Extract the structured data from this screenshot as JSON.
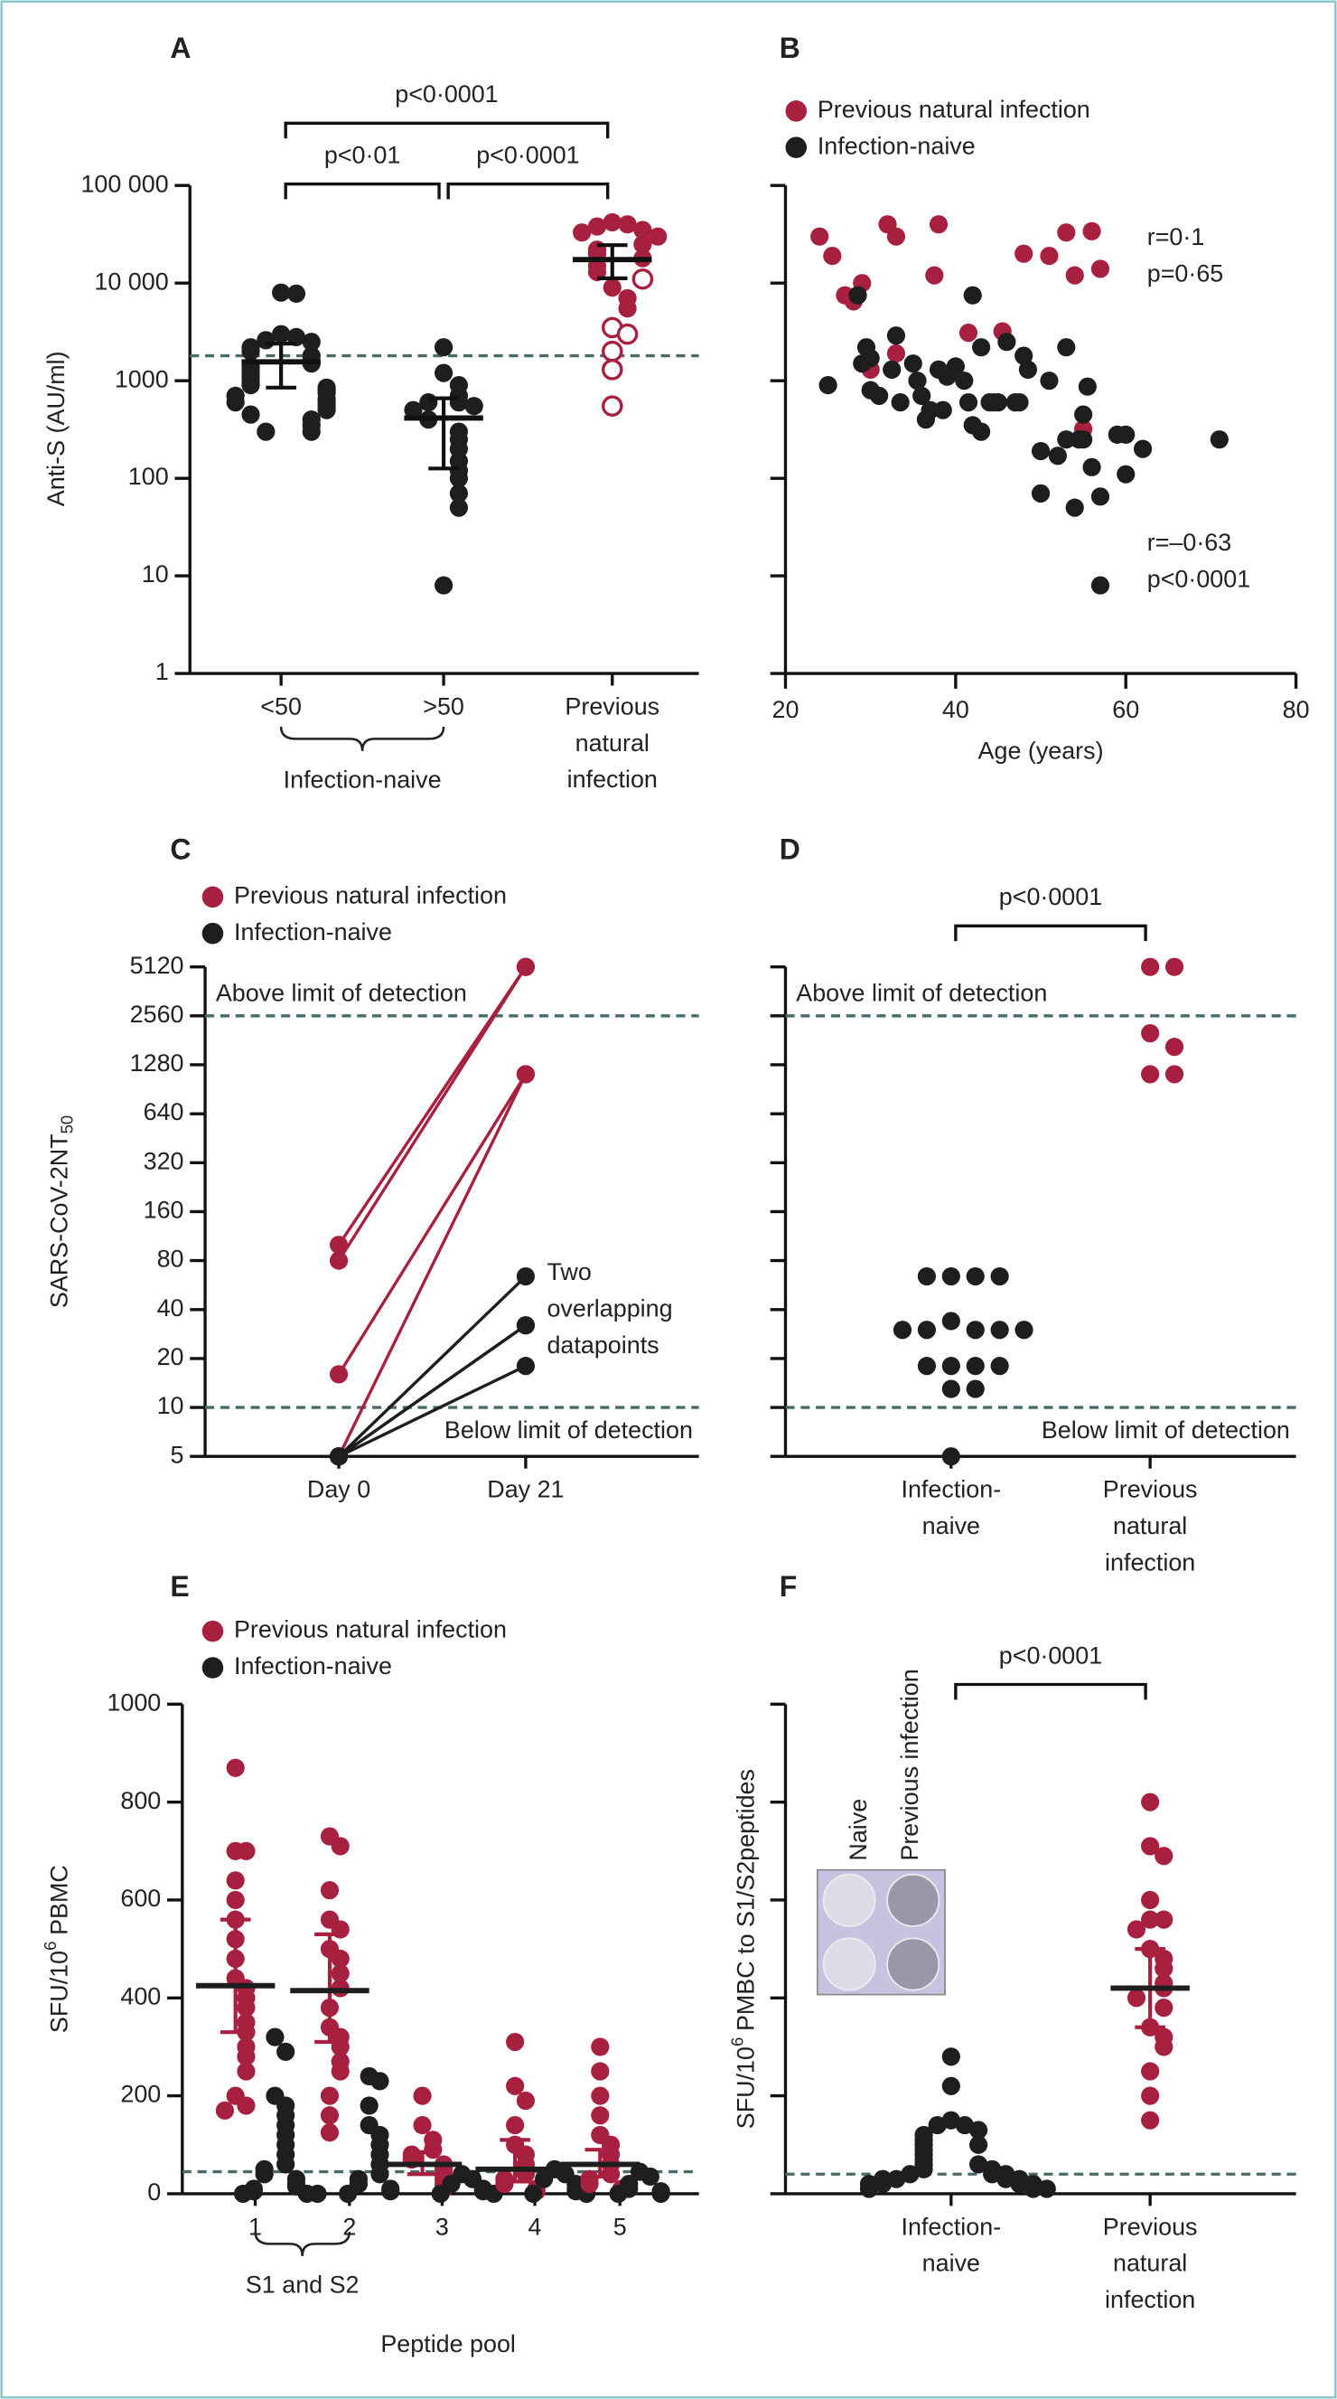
{
  "chart_data": [
    {
      "panel": "A",
      "type": "strip",
      "ylabel": "Anti-S (AU/ml)",
      "yscale": "log",
      "ylim": [
        1,
        100000
      ],
      "yticks": [
        1,
        10,
        100,
        1000,
        {
          "value": 10000,
          "label": "10 000"
        },
        {
          "value": 100000,
          "label": "100 000"
        }
      ],
      "categories": [
        "<50",
        ">50",
        "Previous natural infection"
      ],
      "brace": {
        "from": 0,
        "to": 1,
        "label": "Infection-naive"
      },
      "brackets": [
        {
          "from": 0,
          "to": 1,
          "label": "p<0·01"
        },
        {
          "from": 1,
          "to": 2,
          "label": "p<0·0001"
        },
        {
          "from": 0,
          "to": 2,
          "label": "p<0·0001"
        }
      ],
      "thresholds": [
        {
          "value": 1800
        }
      ],
      "stat_color": "#111111",
      "whisker_color": "#111111",
      "series": [
        {
          "color": "#1e1e1e",
          "values": [
            [
              8000,
              7800,
              3000,
              2800,
              2600,
              2500,
              2200,
              2000,
              1800,
              1600,
              1500,
              1400,
              1300,
              1200,
              1100,
              1000,
              950,
              900,
              850,
              800,
              750,
              700,
              650,
              600,
              600,
              550,
              500,
              450,
              400,
              350,
              300,
              300
            ],
            [
              2200,
              1200,
              900,
              700,
              600,
              600,
              550,
              500,
              400,
              300,
              250,
              200,
              150,
              120,
              100,
              70,
              50,
              8
            ],
            null
          ],
          "median": [
            1560,
            415,
            null
          ],
          "iqr": [
            [
              850,
              2400
            ],
            [
              126,
              660
            ],
            null
          ]
        },
        {
          "color": "#a8203f",
          "values": [
            null,
            null,
            [
              42000,
              40000,
              38000,
              35000,
              33000,
              30000,
              25000,
              22000,
              20000,
              18000,
              15000,
              13000,
              9000,
              7000,
              5500
            ]
          ],
          "open_values": [
            null,
            null,
            [
              11000,
              3500,
              3000,
              2000,
              1300,
              550
            ]
          ],
          "median": [
            null,
            null,
            17400
          ],
          "iqr": [
            null,
            null,
            [
              11200,
              24500
            ]
          ]
        }
      ]
    },
    {
      "panel": "B",
      "type": "scatter",
      "xlabel": "Age (years)",
      "xlim": [
        20,
        80
      ],
      "xticks": [
        20,
        40,
        60,
        80
      ],
      "yscale": "log",
      "ylim": [
        1,
        100000
      ],
      "yticks": [
        1,
        10,
        100,
        1000,
        10000,
        100000
      ],
      "ytick_labels": false,
      "legend": "top-left",
      "notes": [
        "r=0·1",
        "p=0·65",
        "r=–0·63",
        "p<0·0001"
      ],
      "series": [
        {
          "name": "Previous natural infection",
          "color": "#a8203f",
          "x": [
            24,
            25.5,
            27,
            28,
            29,
            30,
            32,
            33,
            33,
            37.5,
            38,
            41.5,
            45.5,
            48,
            51,
            53,
            54,
            55,
            56,
            57
          ],
          "values": [
            30000,
            19000,
            7500,
            6500,
            10000,
            1300,
            40000,
            30000,
            1900,
            12000,
            40000,
            3100,
            3200,
            20000,
            19000,
            33000,
            12000,
            320,
            34000,
            14000
          ]
        },
        {
          "name": "Infection-naive",
          "color": "#1e1e1e",
          "x": [
            25,
            28.5,
            29,
            29.5,
            30,
            30,
            31,
            32.5,
            33,
            33.5,
            35,
            35.5,
            36,
            36.5,
            37,
            38,
            38.5,
            39,
            40,
            41,
            41.5,
            42,
            42,
            43,
            43,
            44,
            44.5,
            45,
            46,
            47,
            47.5,
            48,
            48.5,
            50,
            50,
            51,
            52,
            53,
            53,
            54,
            54.5,
            55,
            55,
            55.5,
            56,
            57,
            57,
            59,
            60,
            60,
            62,
            71
          ],
          "values": [
            900,
            7500,
            1500,
            2200,
            1700,
            800,
            700,
            1300,
            2900,
            600,
            1500,
            1000,
            700,
            400,
            500,
            1300,
            500,
            1100,
            1400,
            1000,
            600,
            7500,
            350,
            300,
            2200,
            600,
            600,
            600,
            2500,
            600,
            600,
            1800,
            1300,
            190,
            70,
            1000,
            170,
            250,
            2200,
            50,
            250,
            450,
            250,
            870,
            130,
            65,
            8,
            280,
            280,
            110,
            200,
            250
          ]
        }
      ]
    },
    {
      "panel": "C",
      "type": "paired",
      "ylabel": {
        "text": "SARS-CoV-2NT",
        "sub": "50"
      },
      "yscale": "log",
      "ylim": [
        5,
        5120
      ],
      "yticks": [
        5,
        10,
        20,
        40,
        80,
        160,
        320,
        640,
        1280,
        2560,
        5120
      ],
      "categories": [
        "Day 0",
        "Day 21"
      ],
      "thresholds": [
        {
          "value": 2560,
          "label": "Above limit of detection"
        },
        {
          "value": 10,
          "label": "Below limit of detection"
        }
      ],
      "notes": [
        "Two overlapping datapoints"
      ],
      "legend": "top-left",
      "series": [
        {
          "name": "Previous natural infection",
          "color": "#a8203f",
          "values": [
            [
              100,
              5120
            ],
            [
              80,
              5120
            ],
            [
              16,
              1120
            ],
            [
              5,
              1120
            ]
          ]
        },
        {
          "name": "Infection-naive",
          "color": "#1e1e1e",
          "values": [
            [
              5,
              64
            ],
            [
              5,
              32
            ],
            [
              5,
              32
            ],
            [
              5,
              18
            ]
          ]
        }
      ]
    },
    {
      "panel": "D",
      "type": "strip",
      "yscale": "log",
      "ylim": [
        5,
        5120
      ],
      "yticks": [
        5,
        10,
        20,
        40,
        80,
        160,
        320,
        640,
        1280,
        2560,
        5120
      ],
      "ytick_labels": false,
      "categories": [
        "Infection-naive",
        "Previous natural infection"
      ],
      "brackets": [
        {
          "from": 0,
          "to": 1,
          "label": "p<0·0001"
        }
      ],
      "thresholds": [
        {
          "value": 2560,
          "label": "Above limit of detection"
        },
        {
          "value": 10,
          "label": "Below limit of detection"
        }
      ],
      "series": [
        {
          "color": "#1e1e1e",
          "values": [
            [
              64,
              64,
              64,
              64,
              34,
              30,
              30,
              30,
              30,
              30,
              18,
              18,
              18,
              18,
              13,
              13,
              5
            ],
            null
          ]
        },
        {
          "color": "#a8203f",
          "values": [
            null,
            [
              5120,
              5120,
              2000,
              1650,
              1120,
              1120
            ]
          ]
        }
      ]
    },
    {
      "panel": "E",
      "type": "strip",
      "ylabel": {
        "text": "SFU/10",
        "sup": "6",
        "rest": "PBMC"
      },
      "xlabel": "Peptide pool",
      "ylim": [
        0,
        1000
      ],
      "yticks": [
        0,
        200,
        400,
        600,
        800,
        1000
      ],
      "categories": [
        "1",
        "2",
        "3",
        "4",
        "5"
      ],
      "brace": {
        "from": 0,
        "to": 1,
        "label": "S1 and S2"
      },
      "thresholds": [
        {
          "value": 45
        }
      ],
      "legend": "top-left",
      "stat_color": "#1e1e1e",
      "series": [
        {
          "name": "Previous natural infection",
          "color": "#a8203f",
          "values": [
            [
              870,
              700,
              700,
              640,
              600,
              560,
              520,
              480,
              440,
              420,
              400,
              380,
              350,
              330,
              300,
              280,
              250,
              200,
              180,
              170
            ],
            [
              730,
              710,
              620,
              560,
              540,
              500,
              480,
              450,
              420,
              380,
              340,
              320,
              300,
              270,
              250,
              200,
              160,
              125
            ],
            [
              200,
              140,
              110,
              90,
              80,
              70,
              60,
              50,
              40,
              30,
              20,
              10
            ],
            [
              310,
              220,
              190,
              140,
              100,
              80,
              60,
              40,
              30,
              20,
              10,
              5
            ],
            [
              300,
              250,
              200,
              160,
              120,
              100,
              80,
              60,
              40,
              30,
              20,
              10
            ]
          ],
          "median": [
            425,
            415,
            60,
            50,
            60
          ],
          "iqr": [
            [
              330,
              560
            ],
            [
              310,
              530
            ],
            [
              40,
              85
            ],
            [
              25,
              110
            ],
            [
              35,
              90
            ]
          ]
        },
        {
          "name": "Infection-naive",
          "color": "#1e1e1e",
          "values": [
            [
              320,
              290,
              200,
              180,
              160,
              140,
              120,
              100,
              80,
              60,
              50,
              40,
              30,
              20,
              15,
              10,
              5,
              0,
              0,
              0
            ],
            [
              240,
              230,
              180,
              140,
              120,
              100,
              80,
              60,
              40,
              30,
              20,
              10,
              5,
              0
            ],
            [
              40,
              30,
              20,
              10,
              5,
              0,
              0
            ],
            [
              50,
              40,
              30,
              20,
              10,
              5,
              0,
              0
            ],
            [
              45,
              35,
              20,
              10,
              5,
              0,
              0
            ]
          ]
        }
      ]
    },
    {
      "panel": "F",
      "type": "strip",
      "ylabel": {
        "text": "SFU/10",
        "sup": "6",
        "rest": "PMBC to S1/S2peptides"
      },
      "ylim": [
        0,
        1000
      ],
      "yticks": [
        0,
        200,
        400,
        600,
        800,
        1000
      ],
      "ytick_labels": false,
      "categories": [
        "Infection-naive",
        "Previous natural infection"
      ],
      "brackets": [
        {
          "from": 0,
          "to": 1,
          "label": "p<0·0001"
        }
      ],
      "thresholds": [
        {
          "value": 40
        }
      ],
      "inset_labels": [
        "Naive",
        "Previous infection"
      ],
      "stat_color": "#1e1e1e",
      "series": [
        {
          "color": "#1e1e1e",
          "values": [
            [
              280,
              220,
              150,
              140,
              140,
              130,
              120,
              110,
              100,
              100,
              90,
              80,
              70,
              60,
              60,
              50,
              50,
              40,
              40,
              40,
              30,
              30,
              30,
              30,
              20,
              20,
              20,
              20,
              10,
              10,
              10
            ],
            null
          ]
        },
        {
          "color": "#a8203f",
          "values": [
            null,
            [
              800,
              710,
              690,
              600,
              560,
              560,
              540,
              500,
              480,
              460,
              430,
              420,
              400,
              380,
              340,
              320,
              300,
              250,
              200,
              150
            ]
          ],
          "median": [
            null,
            420
          ],
          "iqr": [
            null,
            [
              340,
              500
            ]
          ]
        }
      ]
    }
  ]
}
